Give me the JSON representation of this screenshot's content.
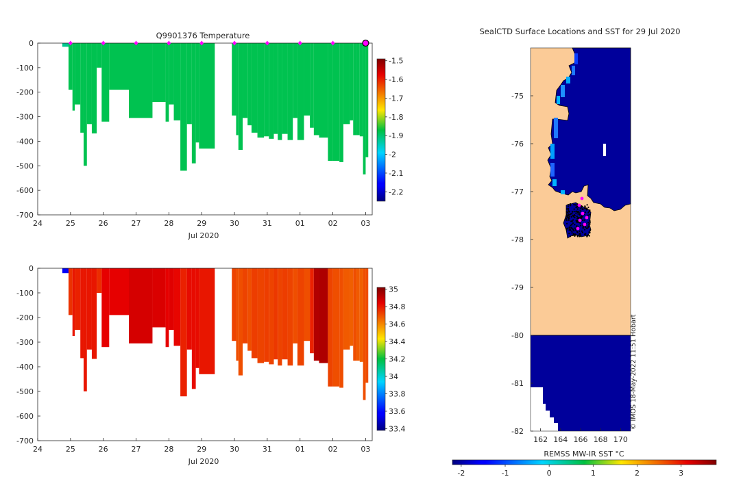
{
  "chart_data": [
    {
      "type": "heatmap",
      "name": "temperature-section",
      "title": "Q9901376  Temperature",
      "xlabel": "Jul 2020",
      "ylabel": "",
      "x_ticks": [
        "24",
        "25",
        "26",
        "27",
        "28",
        "29",
        "30",
        "31",
        "01",
        "02",
        "03"
      ],
      "y_ticks": [
        "0",
        "-100",
        "-200",
        "-300",
        "-400",
        "-500",
        "-600",
        "-700"
      ],
      "xlim": [
        0,
        10.2
      ],
      "ylim": [
        -700,
        0
      ],
      "colorbar": {
        "ticks": [
          "-1.5",
          "-1.6",
          "-1.7",
          "-1.8",
          "-1.9",
          "-2",
          "-2.1",
          "-2.2"
        ],
        "range": [
          -2.25,
          -1.49
        ]
      },
      "profile_markers": [
        1,
        2,
        3,
        4,
        5,
        6,
        7,
        8,
        9,
        10
      ],
      "last_marker": 10,
      "typical_value": -1.88,
      "profiles": [
        {
          "x0": 0.75,
          "x1": 0.94,
          "depth": -15,
          "value": -1.92
        },
        {
          "x0": 0.94,
          "x1": 1.06,
          "depth": -190,
          "value": -1.88
        },
        {
          "x0": 1.06,
          "x1": 1.13,
          "depth": -275,
          "value": -1.88
        },
        {
          "x0": 1.13,
          "x1": 1.3,
          "depth": -250,
          "value": -1.88
        },
        {
          "x0": 1.3,
          "x1": 1.4,
          "depth": -365,
          "value": -1.88
        },
        {
          "x0": 1.4,
          "x1": 1.5,
          "depth": -500,
          "value": -1.88
        },
        {
          "x0": 1.5,
          "x1": 1.65,
          "depth": -330,
          "value": -1.88
        },
        {
          "x0": 1.65,
          "x1": 1.8,
          "depth": -368,
          "value": -1.88
        },
        {
          "x0": 1.8,
          "x1": 1.95,
          "depth": -100,
          "value": -1.88
        },
        {
          "x0": 1.95,
          "x1": 2.18,
          "depth": -320,
          "value": -1.88
        },
        {
          "x0": 2.18,
          "x1": 2.78,
          "depth": -190,
          "value": -1.88
        },
        {
          "x0": 2.78,
          "x1": 3.5,
          "depth": -305,
          "value": -1.88
        },
        {
          "x0": 3.5,
          "x1": 3.9,
          "depth": -240,
          "value": -1.88
        },
        {
          "x0": 3.9,
          "x1": 4.0,
          "depth": -320,
          "value": -1.88
        },
        {
          "x0": 4.0,
          "x1": 4.15,
          "depth": -250,
          "value": -1.88
        },
        {
          "x0": 4.15,
          "x1": 4.35,
          "depth": -315,
          "value": -1.88
        },
        {
          "x0": 4.35,
          "x1": 4.55,
          "depth": -520,
          "value": -1.88
        },
        {
          "x0": 4.55,
          "x1": 4.7,
          "depth": -330,
          "value": -1.88
        },
        {
          "x0": 4.7,
          "x1": 4.82,
          "depth": -490,
          "value": -1.88
        },
        {
          "x0": 4.82,
          "x1": 4.92,
          "depth": -405,
          "value": -1.88
        },
        {
          "x0": 4.92,
          "x1": 5.4,
          "depth": -430,
          "value": -1.88
        },
        {
          "x0": 5.92,
          "x1": 6.05,
          "depth": -295,
          "value": -1.88
        },
        {
          "x0": 6.05,
          "x1": 6.12,
          "depth": -375,
          "value": -1.88
        },
        {
          "x0": 6.12,
          "x1": 6.25,
          "depth": -435,
          "value": -1.88
        },
        {
          "x0": 6.25,
          "x1": 6.4,
          "depth": -305,
          "value": -1.88
        },
        {
          "x0": 6.4,
          "x1": 6.52,
          "depth": -335,
          "value": -1.88
        },
        {
          "x0": 6.52,
          "x1": 6.7,
          "depth": -365,
          "value": -1.88
        },
        {
          "x0": 6.7,
          "x1": 6.9,
          "depth": -385,
          "value": -1.88
        },
        {
          "x0": 6.9,
          "x1": 7.05,
          "depth": -380,
          "value": -1.88
        },
        {
          "x0": 7.05,
          "x1": 7.2,
          "depth": -390,
          "value": -1.88
        },
        {
          "x0": 7.2,
          "x1": 7.32,
          "depth": -370,
          "value": -1.88
        },
        {
          "x0": 7.32,
          "x1": 7.45,
          "depth": -395,
          "value": -1.88
        },
        {
          "x0": 7.45,
          "x1": 7.62,
          "depth": -370,
          "value": -1.88
        },
        {
          "x0": 7.62,
          "x1": 7.78,
          "depth": -395,
          "value": -1.88
        },
        {
          "x0": 7.78,
          "x1": 7.92,
          "depth": -305,
          "value": -1.88
        },
        {
          "x0": 7.92,
          "x1": 8.12,
          "depth": -395,
          "value": -1.88
        },
        {
          "x0": 8.12,
          "x1": 8.3,
          "depth": -295,
          "value": -1.88
        },
        {
          "x0": 8.3,
          "x1": 8.42,
          "depth": -345,
          "value": -1.88
        },
        {
          "x0": 8.42,
          "x1": 8.58,
          "depth": -375,
          "value": -1.88
        },
        {
          "x0": 8.58,
          "x1": 8.85,
          "depth": -385,
          "value": -1.88
        },
        {
          "x0": 8.85,
          "x1": 9.0,
          "depth": -480,
          "value": -1.88
        },
        {
          "x0": 9.0,
          "x1": 9.2,
          "depth": -480,
          "value": -1.88
        },
        {
          "x0": 9.2,
          "x1": 9.32,
          "depth": -485,
          "value": -1.88
        },
        {
          "x0": 9.32,
          "x1": 9.52,
          "depth": -330,
          "value": -1.88
        },
        {
          "x0": 9.52,
          "x1": 9.62,
          "depth": -315,
          "value": -1.88
        },
        {
          "x0": 9.62,
          "x1": 9.72,
          "depth": -375,
          "value": -1.88
        },
        {
          "x0": 9.72,
          "x1": 9.82,
          "depth": -375,
          "value": -1.88
        },
        {
          "x0": 9.82,
          "x1": 9.92,
          "depth": -380,
          "value": -1.88
        },
        {
          "x0": 9.92,
          "x1": 10.0,
          "depth": -535,
          "value": -1.88
        },
        {
          "x0": 10.0,
          "x1": 10.08,
          "depth": -465,
          "value": -1.88
        }
      ]
    },
    {
      "type": "heatmap",
      "name": "salinity-section",
      "title": "",
      "xlabel": "Jul 2020",
      "x_ticks": [
        "24",
        "25",
        "26",
        "27",
        "28",
        "29",
        "30",
        "31",
        "01",
        "02",
        "03"
      ],
      "y_ticks": [
        "0",
        "-100",
        "-200",
        "-300",
        "-400",
        "-500",
        "-600",
        "-700"
      ],
      "xlim": [
        0,
        10.2
      ],
      "ylim": [
        -700,
        0
      ],
      "colorbar": {
        "ticks": [
          "35",
          "34.8",
          "34.6",
          "34.4",
          "34.2",
          "34",
          "33.8",
          "33.6",
          "33.4"
        ],
        "range": [
          33.38,
          35.02
        ]
      },
      "profiles": [
        {
          "x0": 0.75,
          "x1": 0.94,
          "depth": -20,
          "value": 33.55
        },
        {
          "x0": 0.94,
          "x1": 1.06,
          "depth": -190,
          "value": 34.75
        },
        {
          "x0": 1.06,
          "x1": 1.13,
          "depth": -275,
          "value": 34.8
        },
        {
          "x0": 1.13,
          "x1": 1.3,
          "depth": -250,
          "value": 34.78
        },
        {
          "x0": 1.3,
          "x1": 1.4,
          "depth": -365,
          "value": 34.8
        },
        {
          "x0": 1.4,
          "x1": 1.5,
          "depth": -500,
          "value": 34.8
        },
        {
          "x0": 1.5,
          "x1": 1.65,
          "depth": -330,
          "value": 34.8
        },
        {
          "x0": 1.65,
          "x1": 1.8,
          "depth": -368,
          "value": 34.8
        },
        {
          "x0": 1.8,
          "x1": 1.95,
          "depth": -100,
          "value": 34.76
        },
        {
          "x0": 1.95,
          "x1": 2.18,
          "depth": -320,
          "value": 34.84
        },
        {
          "x0": 2.18,
          "x1": 2.78,
          "depth": -190,
          "value": 34.84
        },
        {
          "x0": 2.78,
          "x1": 3.5,
          "depth": -305,
          "value": 34.87
        },
        {
          "x0": 3.5,
          "x1": 3.9,
          "depth": -240,
          "value": 34.86
        },
        {
          "x0": 3.9,
          "x1": 4.0,
          "depth": -320,
          "value": 34.84
        },
        {
          "x0": 4.0,
          "x1": 4.15,
          "depth": -250,
          "value": 34.85
        },
        {
          "x0": 4.15,
          "x1": 4.35,
          "depth": -315,
          "value": 34.83
        },
        {
          "x0": 4.35,
          "x1": 4.55,
          "depth": -520,
          "value": 34.78
        },
        {
          "x0": 4.55,
          "x1": 4.7,
          "depth": -330,
          "value": 34.82
        },
        {
          "x0": 4.7,
          "x1": 4.82,
          "depth": -490,
          "value": 34.82
        },
        {
          "x0": 4.82,
          "x1": 4.92,
          "depth": -405,
          "value": 34.82
        },
        {
          "x0": 4.92,
          "x1": 5.4,
          "depth": -430,
          "value": 34.8
        },
        {
          "x0": 5.92,
          "x1": 6.05,
          "depth": -295,
          "value": 34.72
        },
        {
          "x0": 6.05,
          "x1": 6.12,
          "depth": -375,
          "value": 34.7
        },
        {
          "x0": 6.12,
          "x1": 6.25,
          "depth": -435,
          "value": 34.7
        },
        {
          "x0": 6.25,
          "x1": 6.4,
          "depth": -305,
          "value": 34.72
        },
        {
          "x0": 6.4,
          "x1": 6.52,
          "depth": -335,
          "value": 34.7
        },
        {
          "x0": 6.52,
          "x1": 6.7,
          "depth": -365,
          "value": 34.73
        },
        {
          "x0": 6.7,
          "x1": 6.9,
          "depth": -385,
          "value": 34.72
        },
        {
          "x0": 6.9,
          "x1": 7.05,
          "depth": -380,
          "value": 34.73
        },
        {
          "x0": 7.05,
          "x1": 7.2,
          "depth": -390,
          "value": 34.72
        },
        {
          "x0": 7.2,
          "x1": 7.32,
          "depth": -370,
          "value": 34.74
        },
        {
          "x0": 7.32,
          "x1": 7.45,
          "depth": -395,
          "value": 34.72
        },
        {
          "x0": 7.45,
          "x1": 7.62,
          "depth": -370,
          "value": 34.73
        },
        {
          "x0": 7.62,
          "x1": 7.78,
          "depth": -395,
          "value": 34.72
        },
        {
          "x0": 7.78,
          "x1": 7.92,
          "depth": -305,
          "value": 34.7
        },
        {
          "x0": 7.92,
          "x1": 8.12,
          "depth": -395,
          "value": 34.72
        },
        {
          "x0": 8.12,
          "x1": 8.3,
          "depth": -295,
          "value": 34.7
        },
        {
          "x0": 8.3,
          "x1": 8.42,
          "depth": -345,
          "value": 34.78
        },
        {
          "x0": 8.42,
          "x1": 8.58,
          "depth": -375,
          "value": 34.93
        },
        {
          "x0": 8.58,
          "x1": 8.85,
          "depth": -385,
          "value": 34.94
        },
        {
          "x0": 8.85,
          "x1": 9.0,
          "depth": -480,
          "value": 34.72
        },
        {
          "x0": 9.0,
          "x1": 9.2,
          "depth": -480,
          "value": 34.7
        },
        {
          "x0": 9.2,
          "x1": 9.32,
          "depth": -485,
          "value": 34.7
        },
        {
          "x0": 9.32,
          "x1": 9.52,
          "depth": -330,
          "value": 34.68
        },
        {
          "x0": 9.52,
          "x1": 9.62,
          "depth": -315,
          "value": 34.67
        },
        {
          "x0": 9.62,
          "x1": 9.72,
          "depth": -375,
          "value": 34.7
        },
        {
          "x0": 9.72,
          "x1": 9.82,
          "depth": -375,
          "value": 34.68
        },
        {
          "x0": 9.82,
          "x1": 9.92,
          "depth": -380,
          "value": 34.67
        },
        {
          "x0": 9.92,
          "x1": 10.0,
          "depth": -535,
          "value": 34.7
        },
        {
          "x0": 10.0,
          "x1": 10.08,
          "depth": -465,
          "value": 34.7
        }
      ]
    },
    {
      "type": "heatmap",
      "name": "sst-map",
      "title": "SealCTD Surface Locations and SST for 29 Jul 2020",
      "x_ticks": [
        "162",
        "164",
        "166",
        "168",
        "170"
      ],
      "y_ticks": [
        "-75",
        "-76",
        "-77",
        "-78",
        "-79",
        "-80",
        "-81",
        "-82"
      ],
      "xlim": [
        161,
        171
      ],
      "ylim": [
        -82,
        -74
      ],
      "sst_value_deg_c": -1.8,
      "land_color": "#fbcb97",
      "colorbar": {
        "label": "REMSS MW-IR SST °C",
        "ticks": [
          "-2",
          "-1",
          "0",
          "1",
          "2",
          "3"
        ],
        "range": [
          -2.2,
          3.8
        ]
      },
      "stamp": "© IMOS 18-May-2022 11:51 Hobart"
    }
  ],
  "colors": {
    "background": "#ffffff",
    "axis": "#262626",
    "marker": "#ff00ff",
    "profile_dots": "#000000"
  }
}
